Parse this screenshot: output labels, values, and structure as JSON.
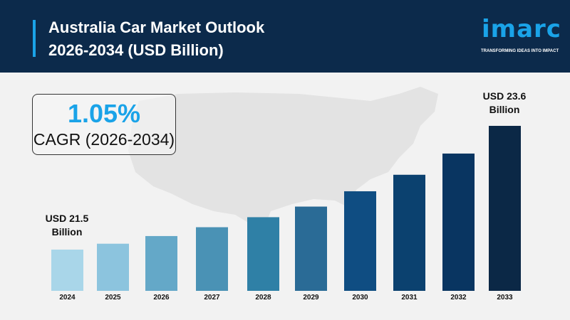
{
  "header": {
    "title_line1": "Australia Car Market Outlook",
    "title_line2": "2026-2034 (USD Billion)"
  },
  "logo": {
    "word": "imarc",
    "tagline": "TRANSFORMING IDEAS INTO IMPACT"
  },
  "cagr": {
    "value": "1.05%",
    "label": "CAGR (2026-2034)"
  },
  "chart_data": {
    "type": "bar",
    "title": "Australia Car Market Outlook 2026-2034 (USD Billion)",
    "categories": [
      "2024",
      "2025",
      "2026",
      "2027",
      "2028",
      "2029",
      "2030",
      "2031",
      "2032",
      "2033"
    ],
    "values": [
      21.5,
      21.6,
      21.73,
      21.88,
      22.05,
      22.23,
      22.49,
      22.77,
      23.13,
      23.6
    ],
    "ylim": [
      20.8,
      23.6
    ],
    "colors": [
      "#a9d6e9",
      "#8cc4de",
      "#64a8c8",
      "#4a92b5",
      "#2f80a6",
      "#2a6b96",
      "#0f4d82",
      "#0b416f",
      "#093561",
      "#0b2846"
    ],
    "annotations": {
      "first": "USD 21.5\nBillion",
      "first_line1": "USD 21.5",
      "first_line2": "Billion",
      "last_line1": "USD 23.6",
      "last_line2": "Billion"
    },
    "grid": false
  }
}
